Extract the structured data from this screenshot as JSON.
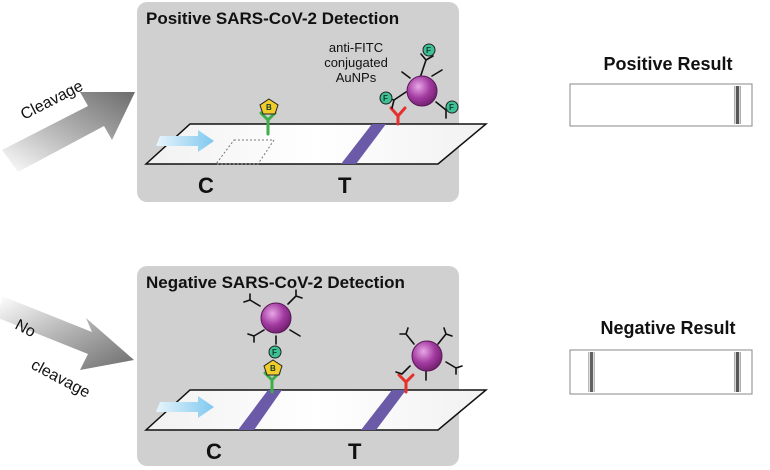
{
  "positive_panel": {
    "title": "Positive SARS-CoV-2 Detection",
    "annotation_lines": [
      "anti-FITC",
      "conjugated",
      "AuNPs"
    ],
    "control_label": "C",
    "test_label": "T"
  },
  "negative_panel": {
    "title": "Negative SARS-CoV-2 Detection",
    "control_label": "C",
    "test_label": "T"
  },
  "arrows": {
    "top_label": "Cleavage",
    "bottom_label_lines": [
      "No",
      "cleavage"
    ]
  },
  "results": {
    "positive_title": "Positive Result",
    "negative_title": "Negative Result"
  },
  "tags": {
    "fitc": "F",
    "biotin": "B"
  },
  "colors": {
    "panel_bg": "#d0d0d0",
    "band": "#6a5aa8",
    "nanoparticle": "#a33ba1",
    "antibody_green": "#3fae49",
    "antibody_red": "#e4312b",
    "fitc_teal": "#3fbf95",
    "biotin_yellow": "#f2cc2a",
    "flow_arrow": "#a8d8f0"
  }
}
